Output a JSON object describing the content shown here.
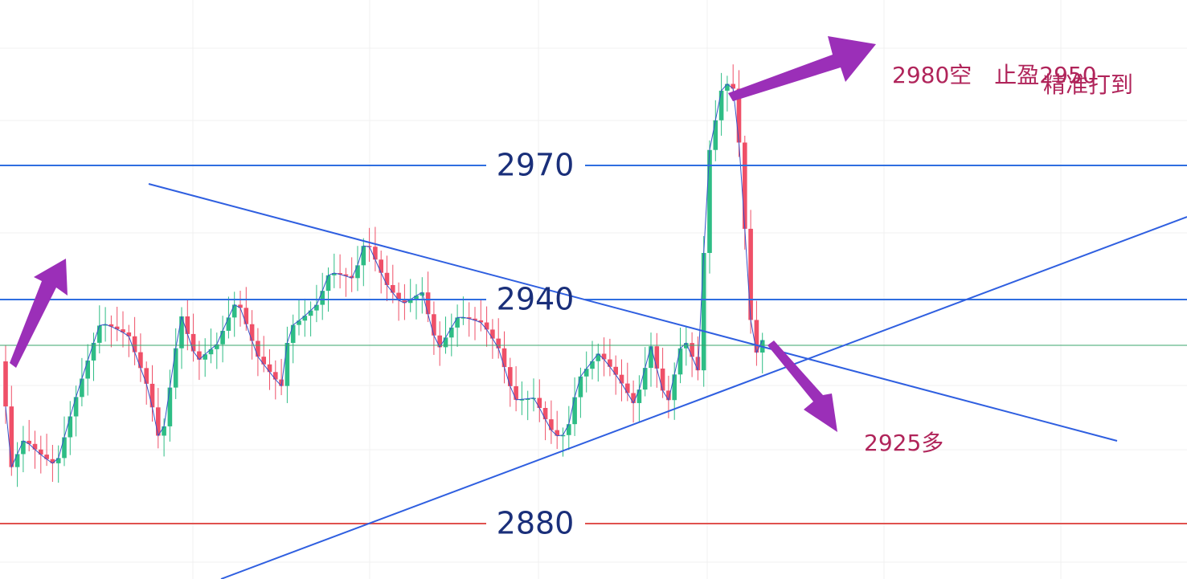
{
  "levels": [
    2970,
    2940,
    2880
  ],
  "annotations": {
    "short": "2980空　止盈2950",
    "hit": "精准打到",
    "long": "2925多"
  }
}
